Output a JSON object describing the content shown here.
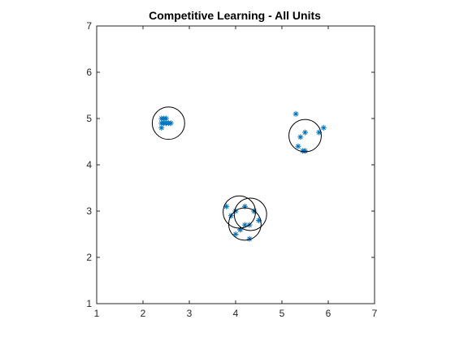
{
  "chart_data": {
    "type": "scatter",
    "title": "Competitive Learning  - All Units",
    "xlabel": "",
    "ylabel": "",
    "xlim": [
      1,
      7
    ],
    "ylim": [
      1,
      7
    ],
    "xticks": [
      1,
      2,
      3,
      4,
      5,
      6,
      7
    ],
    "yticks": [
      1,
      2,
      3,
      4,
      5,
      6,
      7
    ],
    "grid": false,
    "box": true,
    "points": {
      "marker": "asterisk",
      "color": "#0072BD",
      "x": [
        2.4,
        2.45,
        2.5,
        2.4,
        2.55,
        2.6,
        2.45,
        2.4,
        2.5,
        5.3,
        5.35,
        5.4,
        5.45,
        5.5,
        5.8,
        5.9,
        5.5,
        3.8,
        3.9,
        4.0,
        4.1,
        4.2,
        4.3,
        4.4,
        4.5,
        4.0,
        4.1,
        4.3,
        4.2,
        4.4
      ],
      "y": [
        5.0,
        4.9,
        5.0,
        4.8,
        4.9,
        4.9,
        5.0,
        4.9,
        4.9,
        5.1,
        4.4,
        4.6,
        4.3,
        4.7,
        4.7,
        4.8,
        4.3,
        3.1,
        2.9,
        2.5,
        2.6,
        3.1,
        2.7,
        3.0,
        2.8,
        3.0,
        2.6,
        2.4,
        2.7,
        3.0
      ]
    },
    "units": {
      "shape": "circle",
      "color": "#000000",
      "radius": 0.35,
      "centers": [
        {
          "x": 2.55,
          "y": 4.9
        },
        {
          "x": 5.5,
          "y": 4.63
        },
        {
          "x": 4.08,
          "y": 2.98
        },
        {
          "x": 4.32,
          "y": 2.93
        },
        {
          "x": 4.2,
          "y": 2.72
        }
      ]
    }
  }
}
